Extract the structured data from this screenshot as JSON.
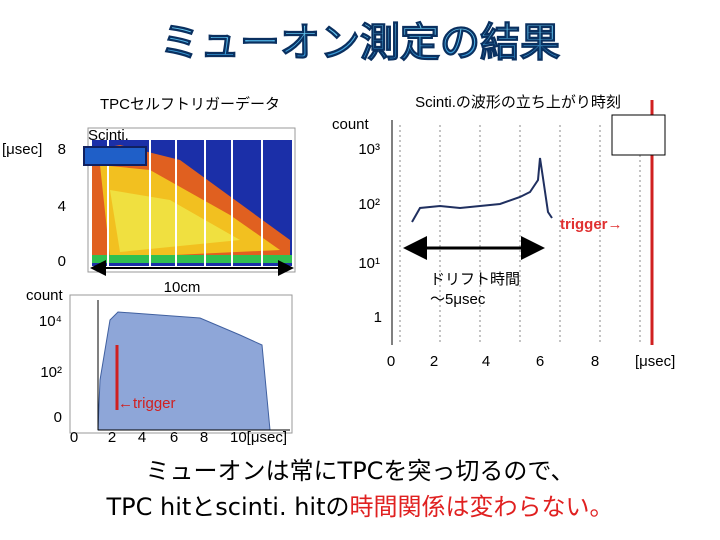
{
  "title": "ミューオン測定の結果",
  "left_panel": {
    "heading": "TPCセルフトリガーデータ",
    "top_plot": {
      "y_unit": "[μsec]",
      "y_ticks": [
        8,
        4,
        0
      ],
      "box_label": "Scinti.",
      "scale": "10cm"
    },
    "bottom_plot": {
      "y_label": "count",
      "log_ticks": [
        "10⁴",
        "10²"
      ],
      "y_zero": 0,
      "x_ticks": [
        0,
        2,
        4,
        6,
        8,
        "10[μsec]"
      ],
      "trigger": "←trigger"
    }
  },
  "right_panel": {
    "heading": "Scinti.の波形の立ち上がり時刻",
    "y_label": "count",
    "log_ticks": [
      "10³",
      "10²",
      "10¹",
      "1"
    ],
    "trigger": "trigger→",
    "drift_label": "ドリフト時間",
    "drift_value": "～5μsec",
    "x_ticks": [
      0,
      2,
      4,
      6,
      8,
      "[μsec]"
    ]
  },
  "conclusion": {
    "line1": "ミューオンは常にTPCを突っ切るので、",
    "line2_start": "TPC hitとscinti. hitの",
    "line2_highlight": "時間関係は変わらない。"
  }
}
